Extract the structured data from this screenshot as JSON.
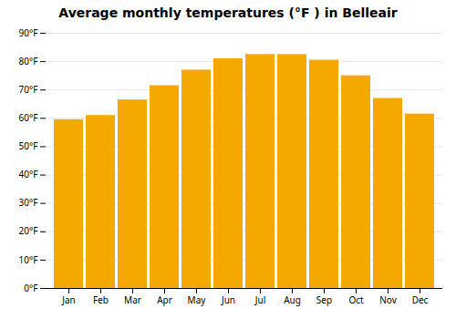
{
  "chart_data": {
    "type": "bar",
    "title": "Average monthly temperatures (°F ) in Belleair",
    "categories": [
      "Jan",
      "Feb",
      "Mar",
      "Apr",
      "May",
      "Jun",
      "Jul",
      "Aug",
      "Sep",
      "Oct",
      "Nov",
      "Dec"
    ],
    "values": [
      59.5,
      61.0,
      66.5,
      71.5,
      77.0,
      81.0,
      82.5,
      82.5,
      80.5,
      75.0,
      67.0,
      61.5
    ],
    "color": "#F5A800",
    "ylim": [
      0,
      90
    ],
    "yticks": [
      {
        "value": 0,
        "label": "0°F"
      },
      {
        "value": 10,
        "label": "10°F"
      },
      {
        "value": 20,
        "label": "20°F"
      },
      {
        "value": 30,
        "label": "30°F"
      },
      {
        "value": 40,
        "label": "40°F"
      },
      {
        "value": 50,
        "label": "50°F"
      },
      {
        "value": 60,
        "label": "60°F"
      },
      {
        "value": 70,
        "label": "70°F"
      },
      {
        "value": 80,
        "label": "80°F"
      },
      {
        "value": 90,
        "label": "90°F"
      }
    ],
    "grid": true
  }
}
